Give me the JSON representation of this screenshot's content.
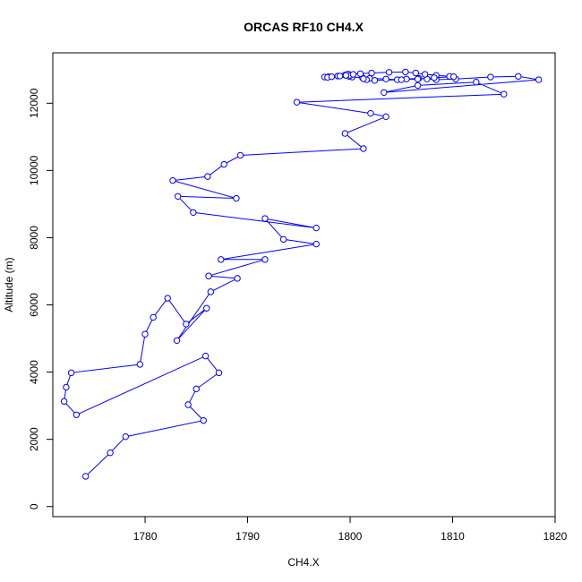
{
  "chart_data": {
    "type": "line",
    "title": "ORCAS RF10 CH4.X",
    "xlabel": "CH4.X",
    "ylabel": "Altitude (m)",
    "xlim": [
      1771,
      1820
    ],
    "ylim": [
      -300,
      13500
    ],
    "xticks": [
      1780,
      1790,
      1800,
      1810,
      1820
    ],
    "yticks": [
      0,
      2000,
      4000,
      6000,
      8000,
      10000,
      12000
    ],
    "series_color": "#0000ff",
    "markers": "open-circle",
    "grid": false,
    "legend": false,
    "series": [
      {
        "x": [
          1774.2,
          1776.6,
          1778.1,
          1785.7,
          1784.2,
          1785.0,
          1787.2,
          1785.9,
          1773.3,
          1772.1,
          1772.3,
          1772.8,
          1779.5,
          1780.0,
          1780.8,
          1782.2,
          1784.0,
          1786.0,
          1783.1,
          1786.4,
          1789.0,
          1786.2,
          1791.7,
          1787.4,
          1796.7,
          1793.5,
          1791.7,
          1796.7,
          1784.7,
          1783.2,
          1788.9,
          1782.7,
          1786.1,
          1787.7,
          1789.3,
          1801.3,
          1799.5,
          1803.5,
          1802.0,
          1794.8,
          1815.0,
          1812.3,
          1806.6,
          1803.3,
          1818.4,
          1816.4,
          1813.7,
          1810.3,
          1808.4,
          1807.5,
          1806.7,
          1805.5,
          1804.6,
          1803.5,
          1801.9,
          1801.2,
          1800.2,
          1799.9,
          1799.5,
          1799.8,
          1800.0,
          1798.8,
          1797.9,
          1797.5,
          1797.8,
          1798.2,
          1799.0,
          1799.6,
          1800.3,
          1801.0,
          1802.1,
          1803.8,
          1805.4,
          1806.4,
          1807.3,
          1808.4,
          1809.7,
          1810.1,
          1808.2,
          1806.6,
          1805.0,
          1802.4,
          1801.6,
          1801.3
        ],
        "y": [
          900,
          1600,
          2080,
          2560,
          3030,
          3500,
          3980,
          4480,
          2730,
          3130,
          3550,
          3980,
          4230,
          5130,
          5630,
          6200,
          5430,
          5900,
          4940,
          6390,
          6790,
          6860,
          7350,
          7350,
          7810,
          7950,
          8570,
          8290,
          8750,
          9230,
          9170,
          9700,
          9820,
          10180,
          10450,
          10650,
          11100,
          11600,
          11700,
          12030,
          12270,
          12630,
          12530,
          12320,
          12700,
          12800,
          12780,
          12720,
          12700,
          12720,
          12740,
          12720,
          12700,
          12720,
          12740,
          12760,
          12780,
          12800,
          12840,
          12870,
          12830,
          12810,
          12790,
          12780,
          12770,
          12790,
          12810,
          12830,
          12860,
          12880,
          12900,
          12920,
          12930,
          12900,
          12860,
          12830,
          12800,
          12790,
          12760,
          12720,
          12700,
          12680,
          12700,
          12730
        ]
      }
    ]
  }
}
